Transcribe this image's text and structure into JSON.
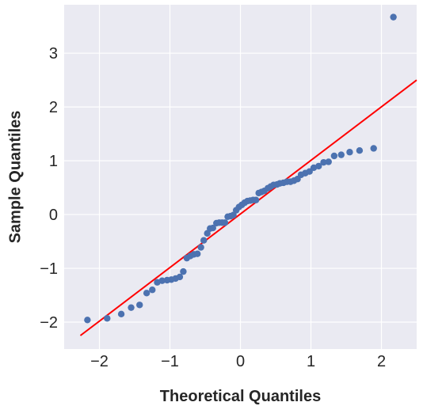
{
  "chart_data": {
    "type": "scatter",
    "title": "",
    "xlabel": "Theoretical Quantiles",
    "ylabel": "Sample Quantiles",
    "xlim": [
      -2.5,
      2.5
    ],
    "ylim": [
      -2.5,
      3.9
    ],
    "x_ticks": [
      -2,
      -1,
      0,
      1,
      2
    ],
    "y_ticks": [
      -2,
      -1,
      0,
      1,
      2,
      3
    ],
    "x_tick_labels": [
      "−2",
      "−1",
      "0",
      "1",
      "2"
    ],
    "y_tick_labels": [
      "−2",
      "−1",
      "0",
      "1",
      "2",
      "3"
    ],
    "grid": true,
    "background_color": "#EAEAF2",
    "grid_color": "#FFFFFF",
    "point_color": "#4C72B0",
    "line_color": "#FF0000",
    "reference_line": {
      "x": [
        -2.27,
        2.5
      ],
      "y": [
        -2.25,
        2.5
      ]
    },
    "points": [
      {
        "x": -2.17,
        "y": -1.96
      },
      {
        "x": -1.89,
        "y": -1.93
      },
      {
        "x": -1.69,
        "y": -1.85
      },
      {
        "x": -1.55,
        "y": -1.73
      },
      {
        "x": -1.43,
        "y": -1.68
      },
      {
        "x": -1.33,
        "y": -1.46
      },
      {
        "x": -1.25,
        "y": -1.4
      },
      {
        "x": -1.18,
        "y": -1.26
      },
      {
        "x": -1.11,
        "y": -1.23
      },
      {
        "x": -1.04,
        "y": -1.22
      },
      {
        "x": -0.98,
        "y": -1.21
      },
      {
        "x": -0.92,
        "y": -1.19
      },
      {
        "x": -0.86,
        "y": -1.16
      },
      {
        "x": -0.81,
        "y": -1.06
      },
      {
        "x": -0.76,
        "y": -0.81
      },
      {
        "x": -0.71,
        "y": -0.77
      },
      {
        "x": -0.66,
        "y": -0.74
      },
      {
        "x": -0.61,
        "y": -0.73
      },
      {
        "x": -0.56,
        "y": -0.61
      },
      {
        "x": -0.52,
        "y": -0.48
      },
      {
        "x": -0.47,
        "y": -0.35
      },
      {
        "x": -0.43,
        "y": -0.26
      },
      {
        "x": -0.39,
        "y": -0.25
      },
      {
        "x": -0.34,
        "y": -0.16
      },
      {
        "x": -0.3,
        "y": -0.15
      },
      {
        "x": -0.26,
        "y": -0.15
      },
      {
        "x": -0.22,
        "y": -0.15
      },
      {
        "x": -0.18,
        "y": -0.04
      },
      {
        "x": -0.14,
        "y": -0.03
      },
      {
        "x": -0.1,
        "y": -0.01
      },
      {
        "x": -0.06,
        "y": 0.08
      },
      {
        "x": -0.02,
        "y": 0.14
      },
      {
        "x": 0.02,
        "y": 0.18
      },
      {
        "x": 0.06,
        "y": 0.22
      },
      {
        "x": 0.1,
        "y": 0.25
      },
      {
        "x": 0.14,
        "y": 0.26
      },
      {
        "x": 0.18,
        "y": 0.27
      },
      {
        "x": 0.22,
        "y": 0.27
      },
      {
        "x": 0.26,
        "y": 0.4
      },
      {
        "x": 0.3,
        "y": 0.42
      },
      {
        "x": 0.34,
        "y": 0.44
      },
      {
        "x": 0.39,
        "y": 0.49
      },
      {
        "x": 0.43,
        "y": 0.52
      },
      {
        "x": 0.47,
        "y": 0.55
      },
      {
        "x": 0.52,
        "y": 0.56
      },
      {
        "x": 0.56,
        "y": 0.58
      },
      {
        "x": 0.61,
        "y": 0.59
      },
      {
        "x": 0.66,
        "y": 0.61
      },
      {
        "x": 0.71,
        "y": 0.61
      },
      {
        "x": 0.76,
        "y": 0.63
      },
      {
        "x": 0.81,
        "y": 0.66
      },
      {
        "x": 0.86,
        "y": 0.74
      },
      {
        "x": 0.92,
        "y": 0.77
      },
      {
        "x": 0.98,
        "y": 0.8
      },
      {
        "x": 1.04,
        "y": 0.87
      },
      {
        "x": 1.11,
        "y": 0.9
      },
      {
        "x": 1.18,
        "y": 0.97
      },
      {
        "x": 1.25,
        "y": 0.98
      },
      {
        "x": 1.33,
        "y": 1.09
      },
      {
        "x": 1.43,
        "y": 1.11
      },
      {
        "x": 1.55,
        "y": 1.16
      },
      {
        "x": 1.69,
        "y": 1.19
      },
      {
        "x": 1.89,
        "y": 1.23
      },
      {
        "x": 2.17,
        "y": 3.67
      }
    ]
  }
}
